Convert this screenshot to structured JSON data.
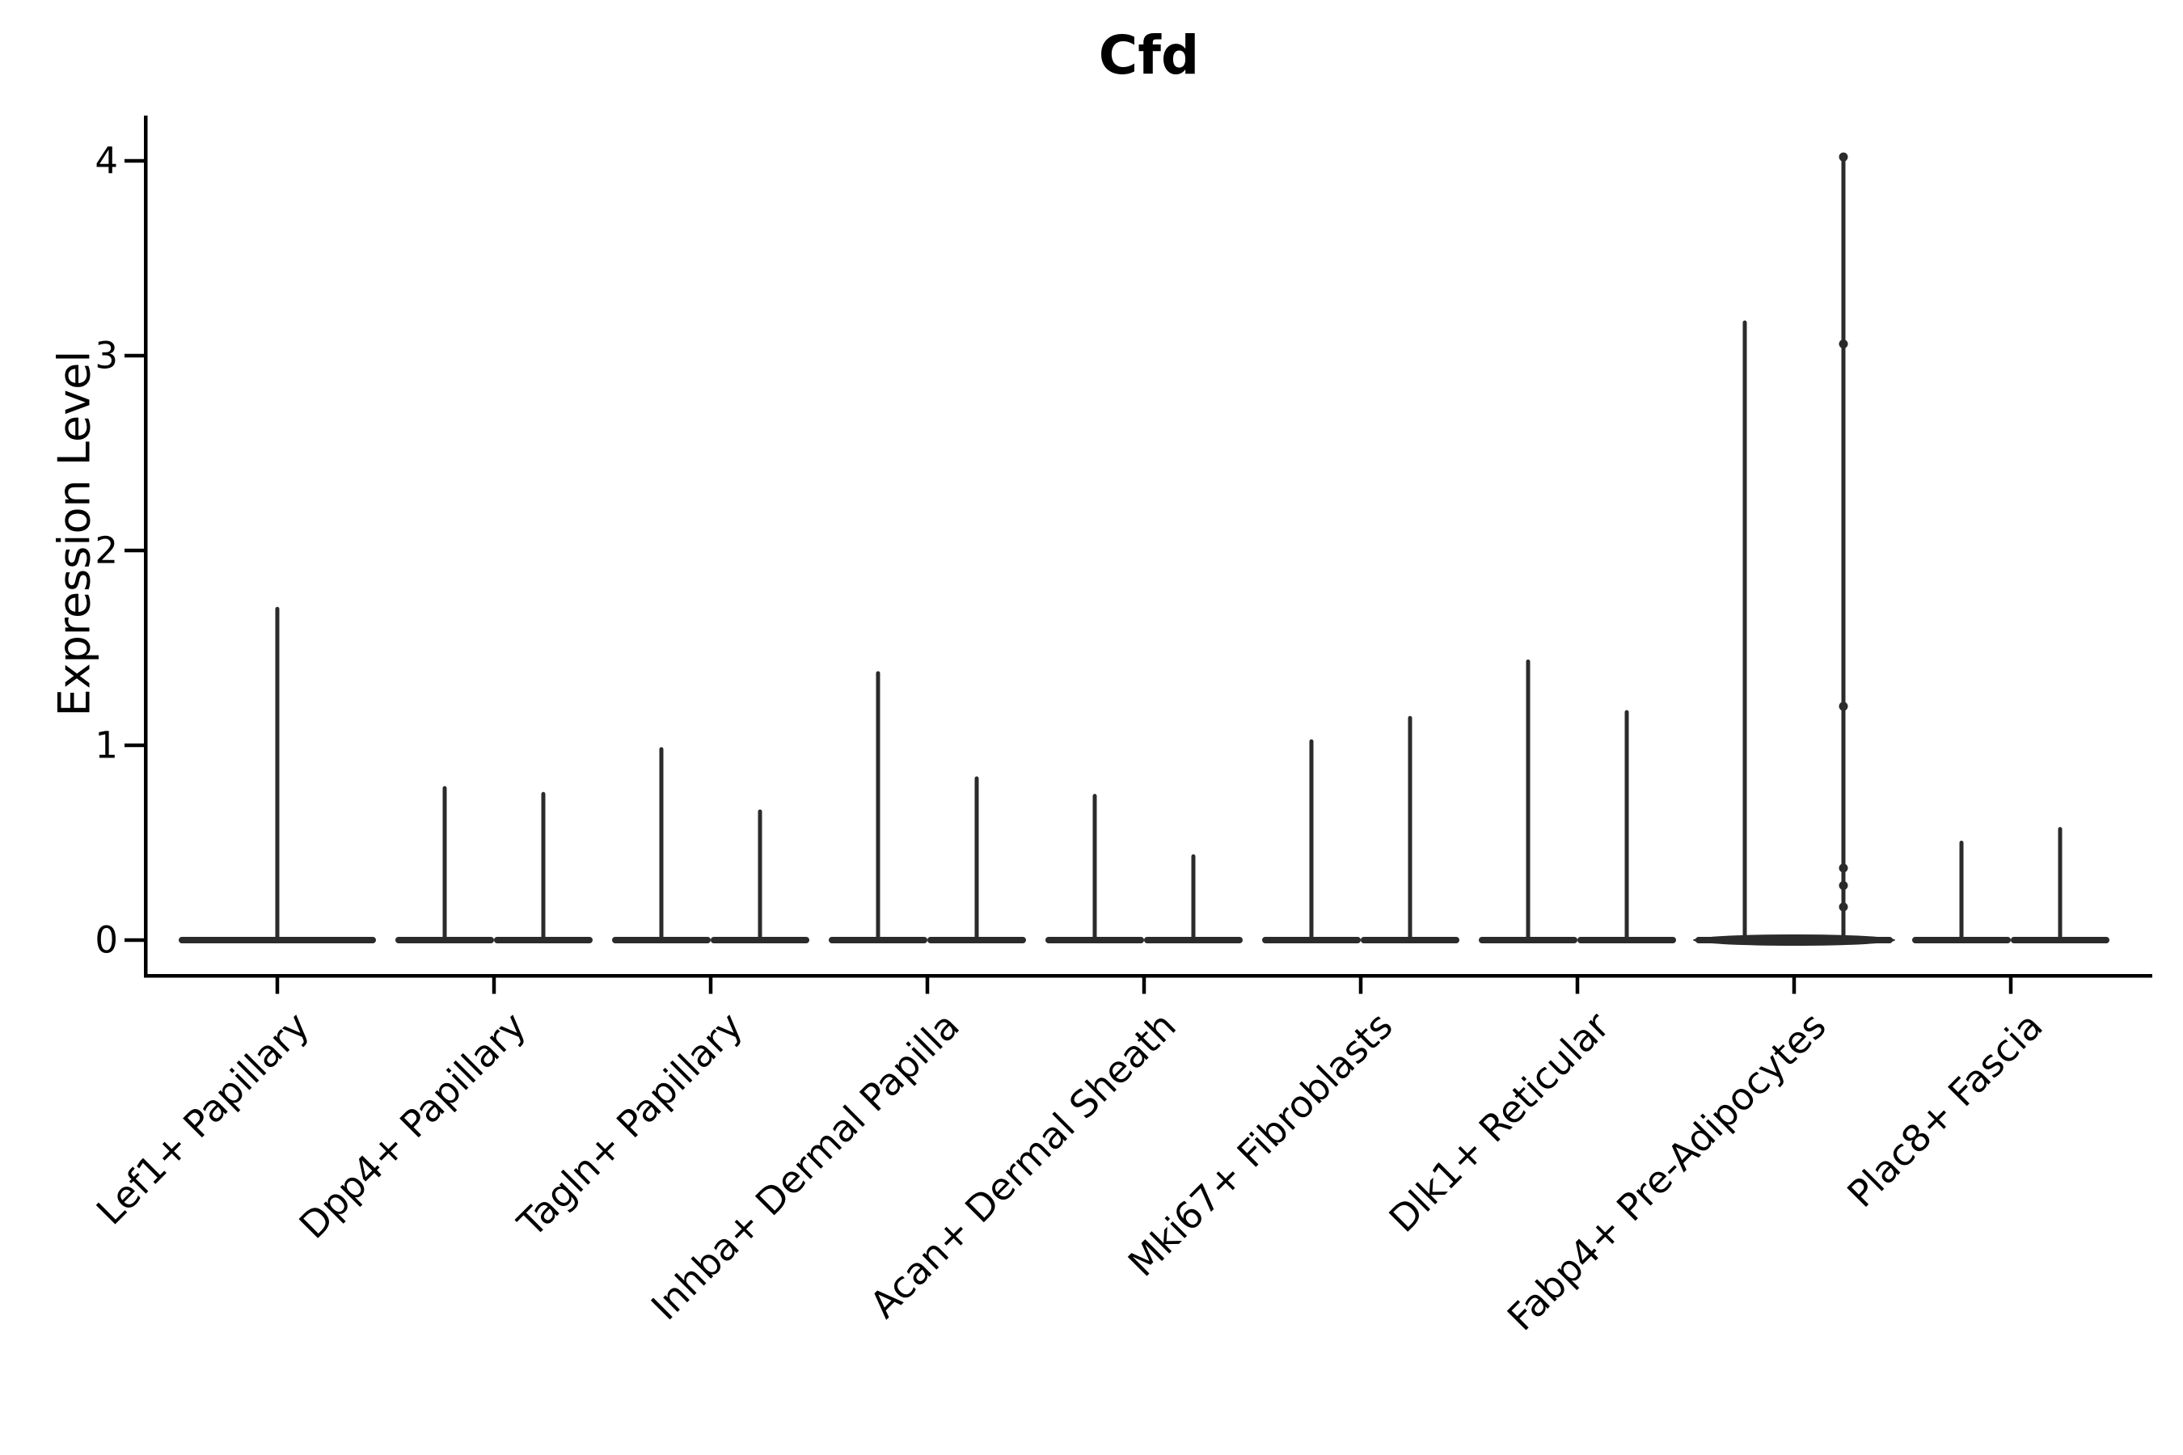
{
  "chart_data": {
    "type": "violin",
    "title": "Cfd",
    "ylabel": "Expression Level",
    "xlabel": "",
    "ylim": [
      0,
      4.2
    ],
    "yticks": [
      0,
      1,
      2,
      3,
      4
    ],
    "ytick_labels": [
      "0",
      "1",
      "2",
      "3",
      "4"
    ],
    "grid": false,
    "legend": null,
    "x_tick_rotation_deg": 45,
    "violin_color": "#2b2b2b",
    "axis_color": "#000000",
    "categories": [
      {
        "label": "Lef1+ Papillary",
        "violins": [
          {
            "max": 1.7
          }
        ]
      },
      {
        "label": "Dpp4+ Papillary",
        "violins": [
          {
            "max": 0.78
          },
          {
            "max": 0.75
          }
        ]
      },
      {
        "label": "Tagln+ Papillary",
        "violins": [
          {
            "max": 0.98
          },
          {
            "max": 0.66
          }
        ]
      },
      {
        "label": "Inhba+ Dermal Papilla",
        "violins": [
          {
            "max": 1.37
          },
          {
            "max": 0.83
          }
        ]
      },
      {
        "label": "Acan+ Dermal Sheath",
        "violins": [
          {
            "max": 0.74
          },
          {
            "max": 0.43
          }
        ]
      },
      {
        "label": "Mki67+ Fibroblasts",
        "violins": [
          {
            "max": 1.02
          },
          {
            "max": 1.14
          }
        ]
      },
      {
        "label": "Dlk1+ Reticular",
        "violins": [
          {
            "max": 1.43
          },
          {
            "max": 1.17
          }
        ]
      },
      {
        "label": "Fabp4+ Pre-Adipocytes",
        "violins": [
          {
            "max": 3.17
          },
          {
            "max": 4.02,
            "dots": [
              4.02,
              3.06,
              1.2,
              0.37,
              0.28,
              0.17
            ]
          }
        ],
        "body_bulge": true
      },
      {
        "label": "Plac8+ Fascia",
        "violins": [
          {
            "max": 0.5
          },
          {
            "max": 0.57
          }
        ]
      }
    ]
  }
}
